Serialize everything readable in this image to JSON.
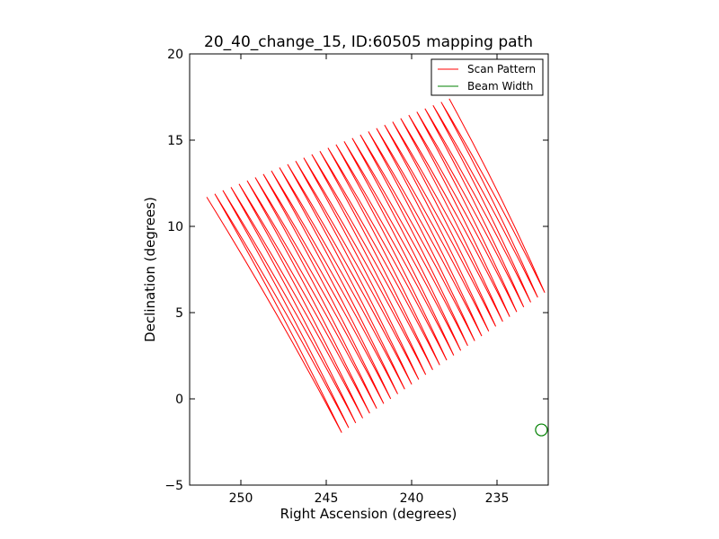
{
  "chart_data": {
    "type": "line",
    "title": "20_40_change_15, ID:60505 mapping path",
    "xlabel": "Right Ascension (degrees)",
    "ylabel": "Declination (degrees)",
    "xlim": [
      253,
      232
    ],
    "ylim": [
      -5,
      20
    ],
    "x_inverted": true,
    "xticks": [
      250,
      245,
      240,
      235
    ],
    "yticks": [
      -5,
      0,
      5,
      10,
      15,
      20
    ],
    "xtick_labels": [
      "250",
      "245",
      "240",
      "235"
    ],
    "ytick_labels": [
      "−5",
      "0",
      "5",
      "10",
      "15",
      "20"
    ],
    "grid": false,
    "legend": {
      "placement": "top-right",
      "entries": [
        {
          "name": "Scan Pattern",
          "color": "#ff0000"
        },
        {
          "name": "Beam Width",
          "color": "#008000"
        }
      ]
    },
    "series": [
      {
        "name": "Scan Pattern",
        "color": "#ff0000",
        "pattern": "zigzag",
        "corners": {
          "top_left": [
            252.0,
            11.7
          ],
          "top_right": [
            237.8,
            17.4
          ],
          "bottom_left": [
            244.3,
            -2.1
          ],
          "bottom_right": [
            232.0,
            6.3
          ]
        },
        "legs": 60
      },
      {
        "name": "Beam Width",
        "color": "#008000",
        "marker": "circle",
        "x": [
          232.4
        ],
        "y": [
          -1.8
        ]
      }
    ]
  }
}
